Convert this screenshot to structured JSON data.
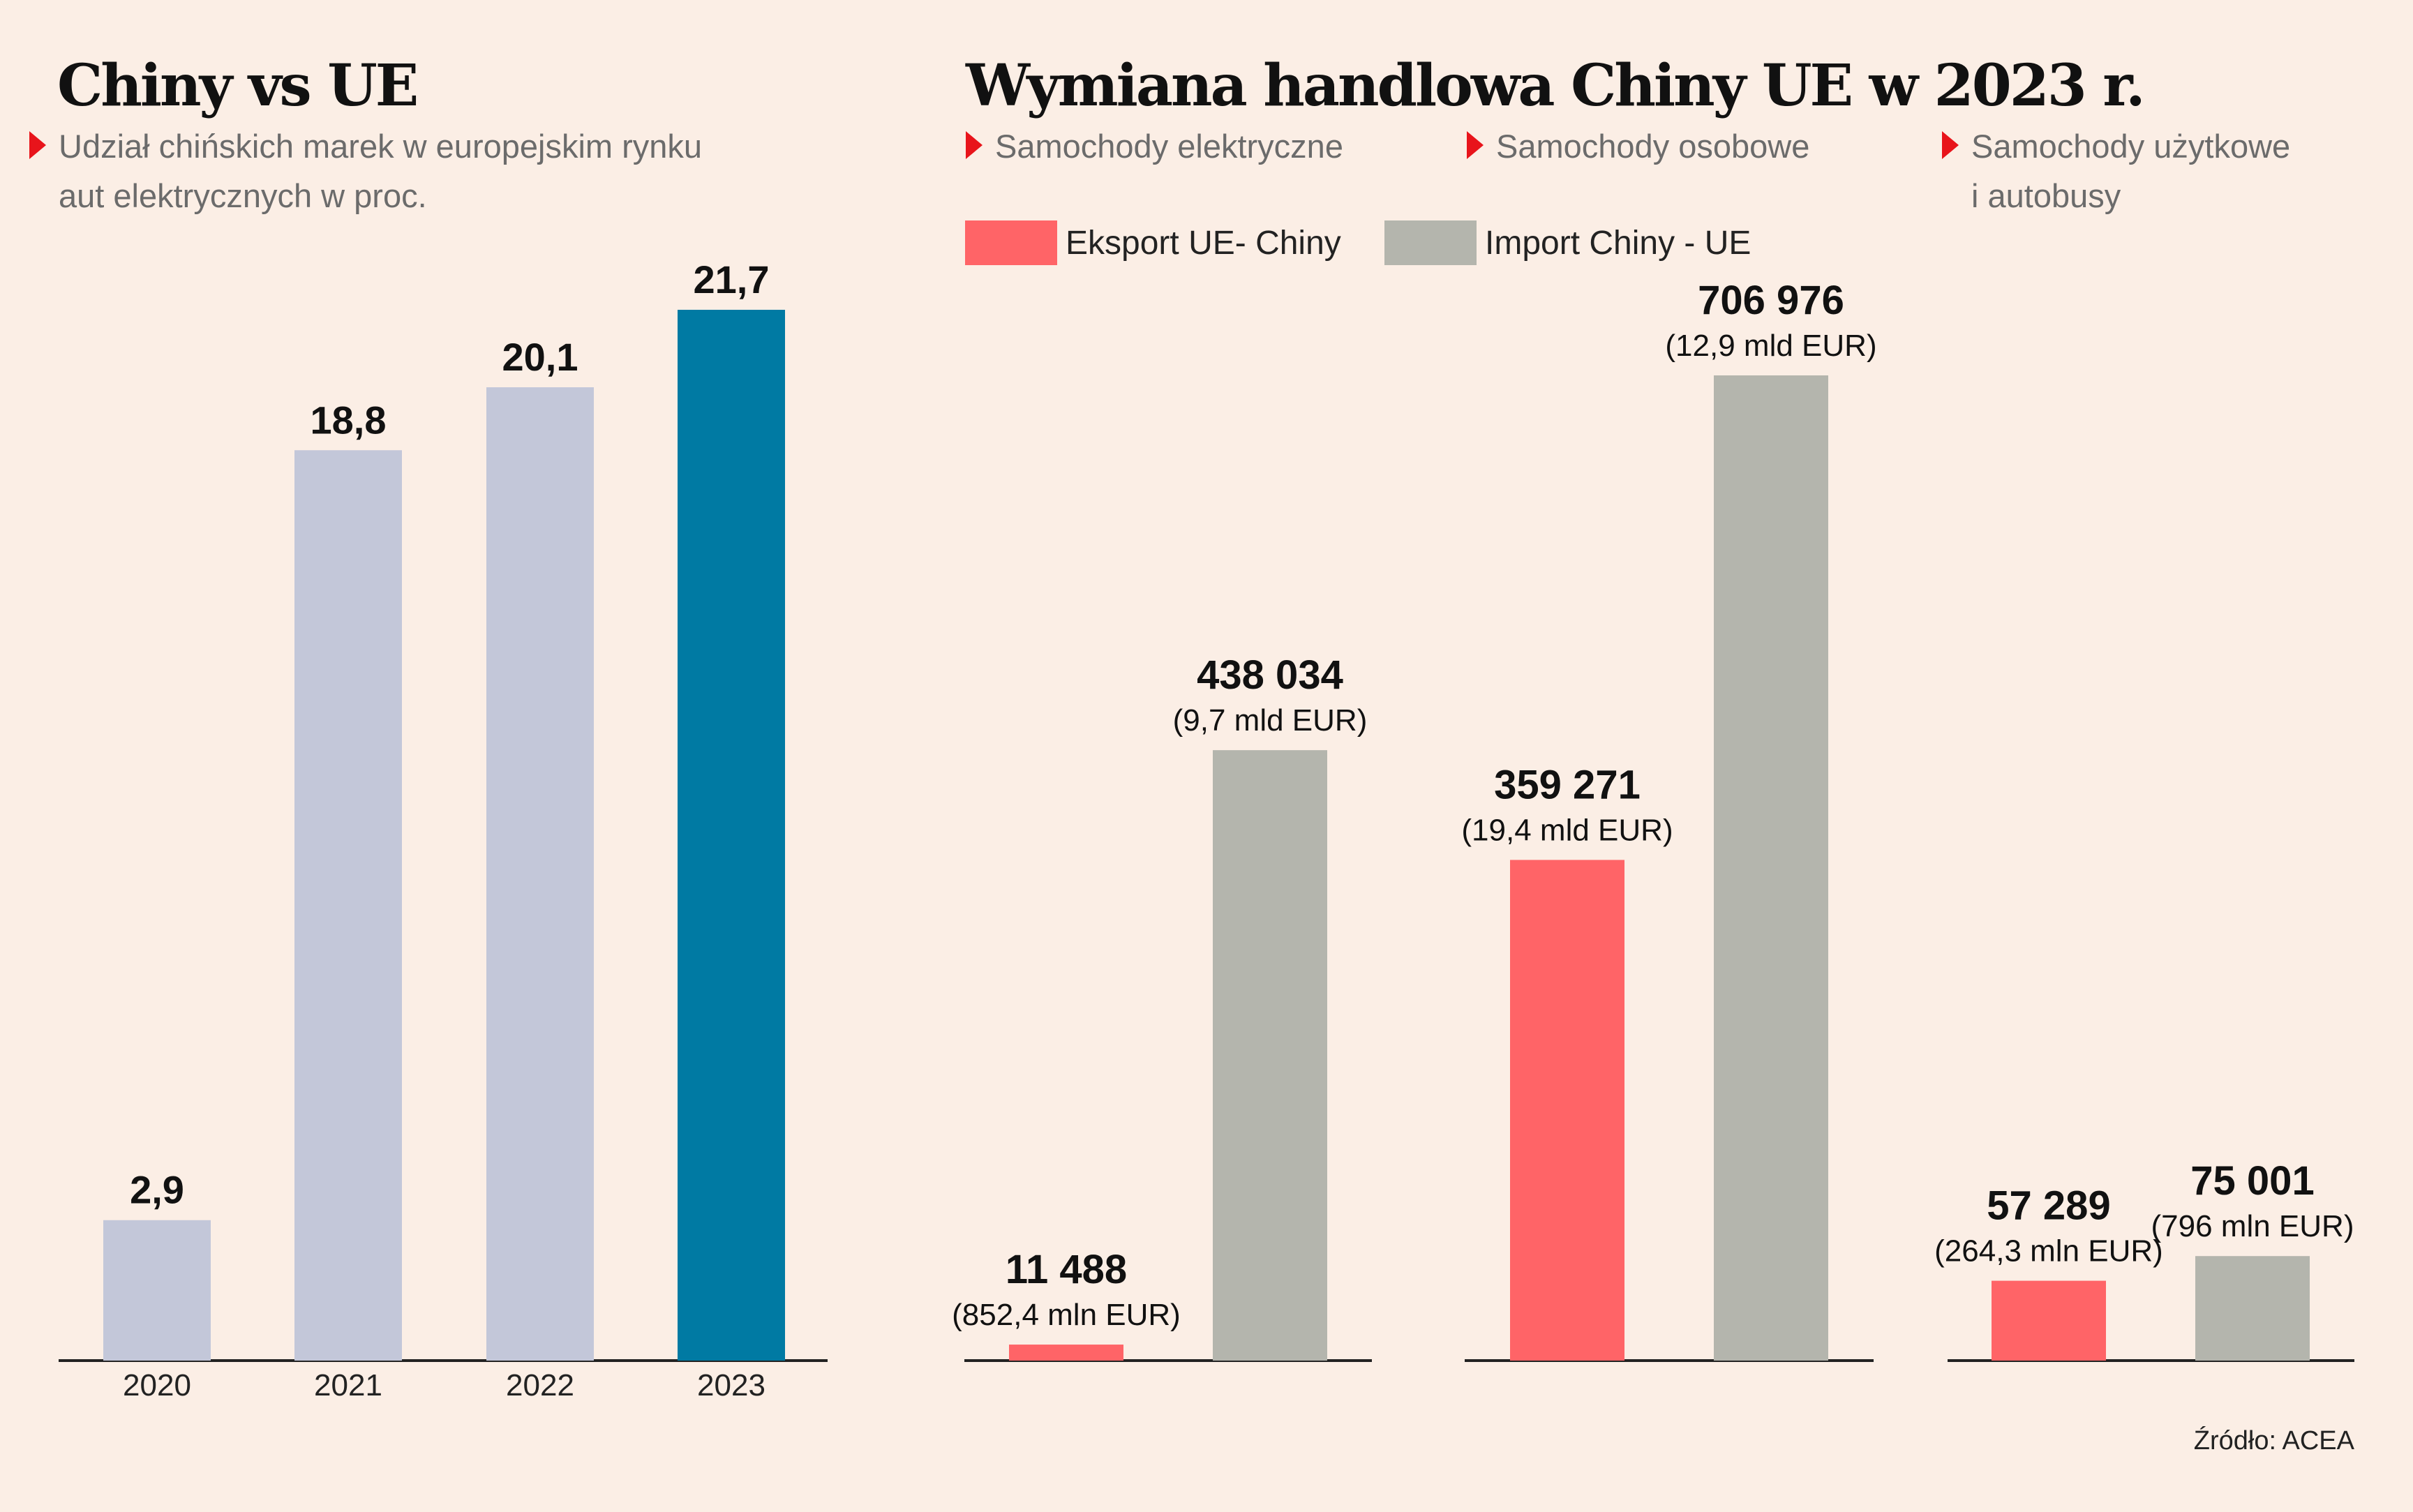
{
  "colors": {
    "background": "#fbeee5",
    "share_bar": "#c3c7d9",
    "share_bar_highlight": "#007aa3",
    "export": "#ff6467",
    "import": "#b4b5ad",
    "axis": "#222222",
    "triangle": "#e8141b"
  },
  "left": {
    "title": "Chiny vs UE",
    "subtitle_line1": "Udział chińskich marek w europejskim rynku",
    "subtitle_line2": "aut elektrycznych w proc."
  },
  "right": {
    "title": "Wymiana handlowa Chiny UE w 2023 r.",
    "panel1_label": "Samochody elektryczne",
    "panel2_label": "Samochody osobowe",
    "panel3_label_line1": "Samochody użytkowe",
    "panel3_label_line2": "i autobusy",
    "legend_export": "Eksport UE- Chiny",
    "legend_import": "Import Chiny - UE"
  },
  "source": "Źródło: ACEA",
  "chart_data": [
    {
      "type": "bar",
      "title": "Chiny vs UE",
      "subtitle": "Udział chińskich marek w europejskim rynku aut elektrycznych w proc.",
      "categories": [
        "2020",
        "2021",
        "2022",
        "2023"
      ],
      "values": [
        2.9,
        18.8,
        20.1,
        21.7
      ],
      "labels": [
        "2,9",
        "18,8",
        "20,1",
        "21,7"
      ],
      "highlight": "2023",
      "ylim": [
        0,
        21.7
      ],
      "grid": false
    },
    {
      "type": "bar",
      "title": "Wymiana handlowa Chiny UE w 2023 r.",
      "categories": [
        "Samochody elektryczne",
        "Samochody osobowe",
        "Samochody użytkowe i autobusy"
      ],
      "series": [
        {
          "name": "Eksport UE- Chiny",
          "values": [
            11488,
            359271,
            57289
          ],
          "labels": [
            "11 488",
            "359 271",
            "57 289"
          ],
          "sublabels": [
            "(852,4 mln EUR)",
            "(19,4 mld EUR)",
            "(264,3 mln EUR)"
          ]
        },
        {
          "name": "Import Chiny - UE",
          "values": [
            438034,
            706976,
            75001
          ],
          "labels": [
            "438 034",
            "706 976",
            "75 001"
          ],
          "sublabels": [
            "(9,7 mld EUR)",
            "(12,9 mld EUR)",
            "(796 mln EUR)"
          ]
        }
      ],
      "ylim": [
        0,
        706976
      ],
      "legend": "top-left",
      "grid": false
    }
  ]
}
